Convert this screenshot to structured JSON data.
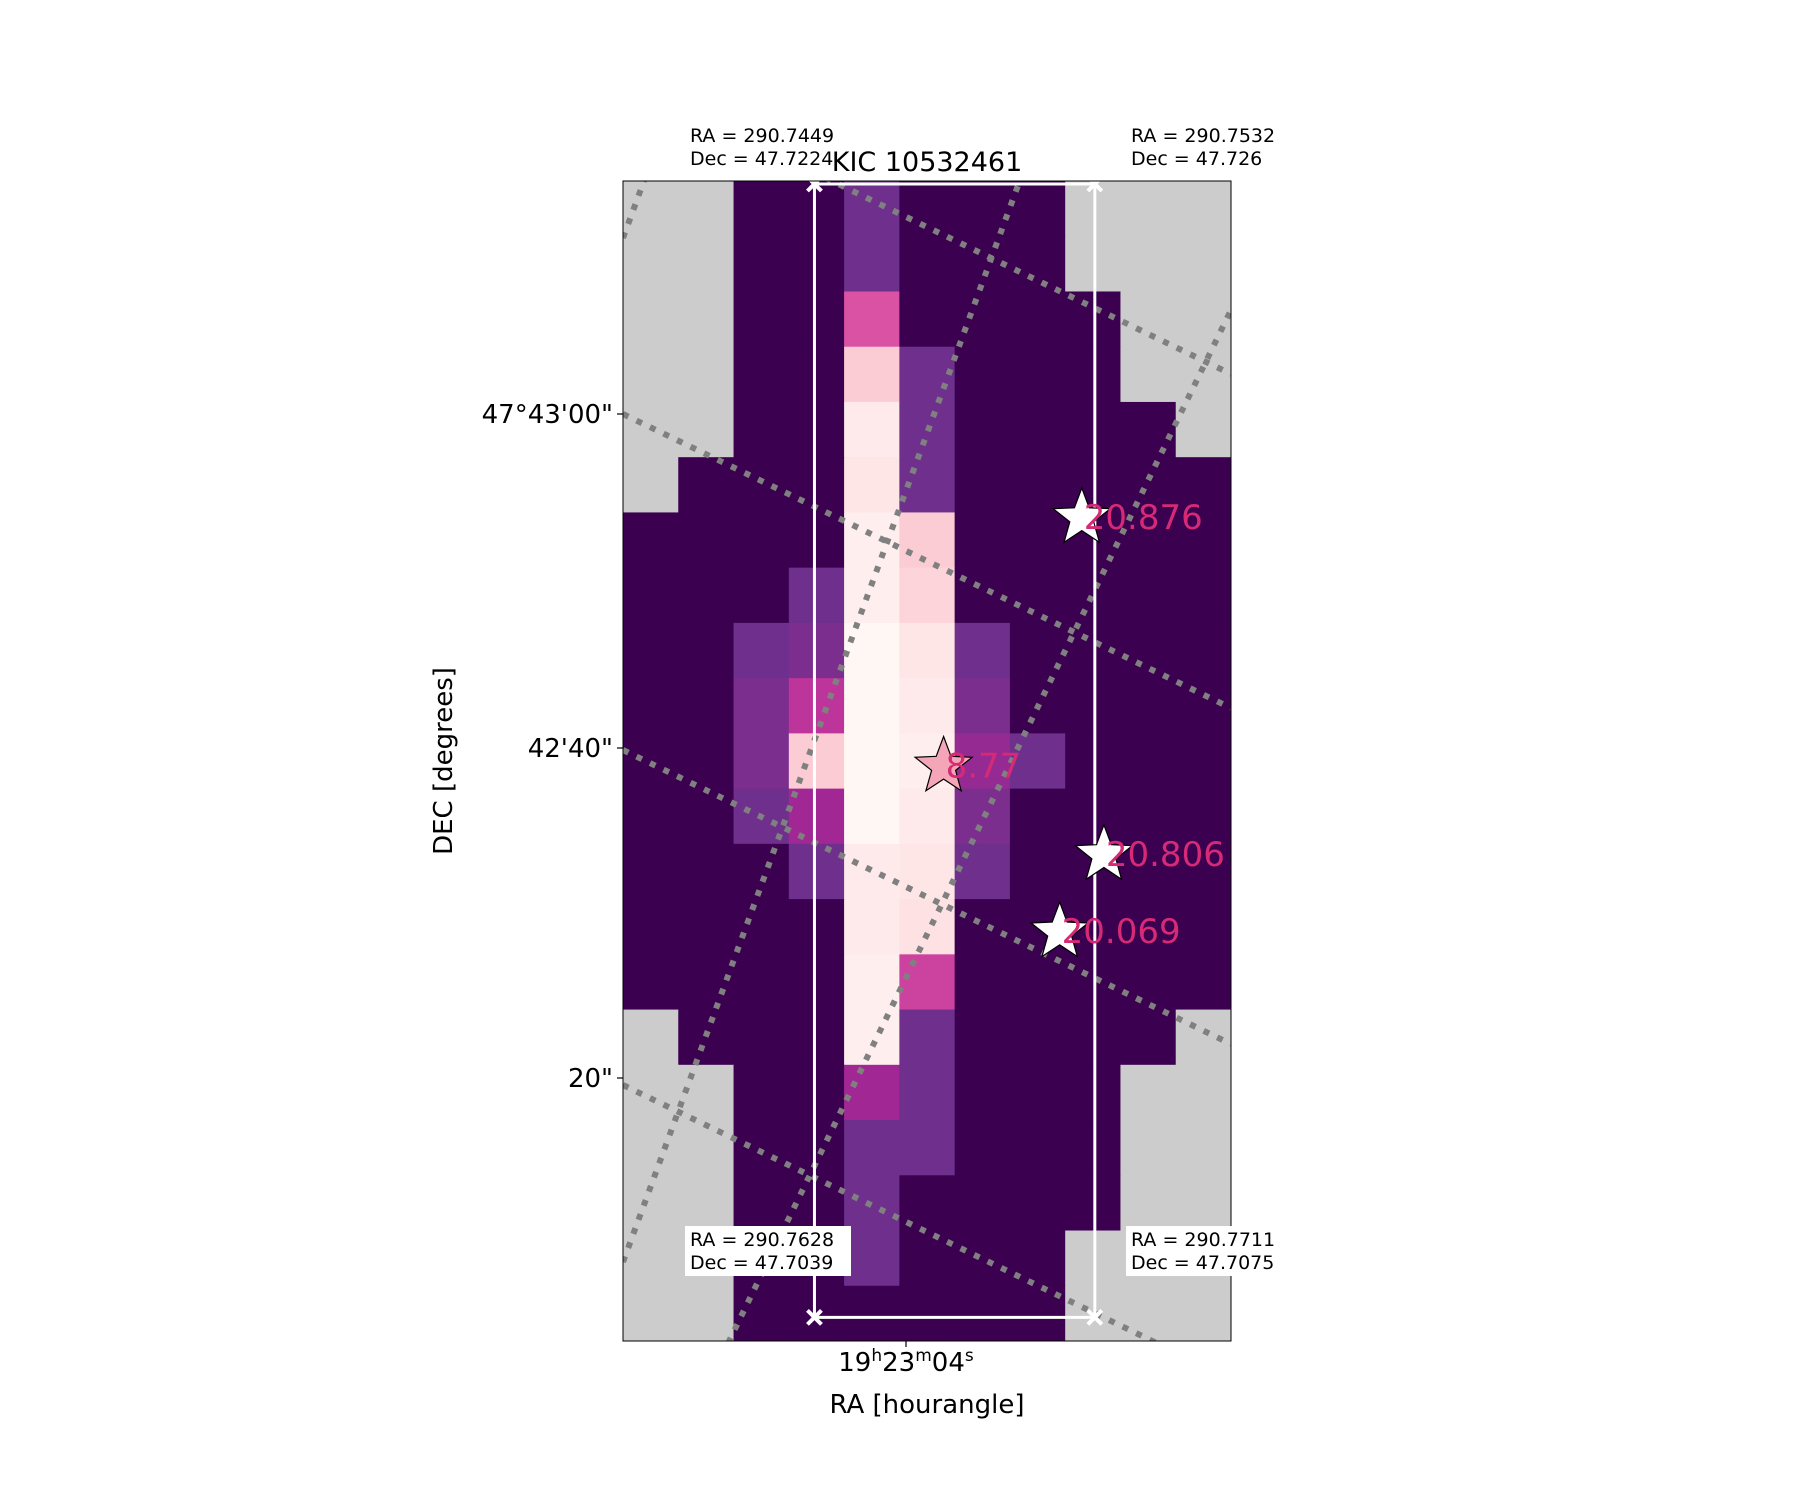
{
  "chart_data": {
    "type": "heatmap",
    "title": "KIC 10532461",
    "xlabel": "RA [hourangle]",
    "ylabel": "DEC [degrees]",
    "x_ticks": [
      {
        "label_parts": [
          "19",
          "h",
          "23",
          "m",
          "04",
          "s"
        ]
      }
    ],
    "y_ticks": [
      {
        "label": "47°43'00\""
      },
      {
        "label": "42'40\""
      },
      {
        "label": "20\""
      }
    ],
    "grid": "dotted gray coordinate grid",
    "colormap": "RdPu_r",
    "masked_color": "#cccccc",
    "pixel_grid": {
      "ncols": 11,
      "nrows": 21,
      "rows_top_to_bottom": [
        [
          -1,
          -1,
          0,
          0,
          0.25,
          0,
          0,
          0,
          -1,
          -1,
          -1
        ],
        [
          -1,
          -1,
          0,
          0,
          0.25,
          0,
          0,
          0,
          -1,
          -1,
          -1
        ],
        [
          -1,
          -1,
          0,
          0,
          0.65,
          0,
          0,
          0,
          0,
          -1,
          -1
        ],
        [
          -1,
          -1,
          0,
          0,
          0.9,
          0.25,
          0,
          0,
          0,
          -1,
          -1
        ],
        [
          -1,
          -1,
          0,
          0,
          0.97,
          0.25,
          0,
          0,
          0,
          0,
          -1
        ],
        [
          -1,
          0,
          0,
          0,
          0.96,
          0.25,
          0,
          0,
          0,
          0,
          0
        ],
        [
          0,
          0,
          0,
          0,
          0.98,
          0.9,
          0,
          0,
          0,
          0,
          0
        ],
        [
          0,
          0,
          0,
          0.25,
          0.98,
          0.92,
          0,
          0,
          0,
          0,
          0
        ],
        [
          0,
          0,
          0.25,
          0.3,
          1,
          0.96,
          0.25,
          0,
          0,
          0,
          0
        ],
        [
          0,
          0,
          0.3,
          0.55,
          1,
          0.97,
          0.3,
          0,
          0,
          0,
          0
        ],
        [
          0,
          0,
          0.3,
          0.9,
          1,
          0.98,
          0.4,
          0.25,
          0,
          0,
          0
        ],
        [
          0,
          0,
          0.25,
          0.45,
          1,
          0.97,
          0.3,
          0,
          0,
          0,
          0
        ],
        [
          0,
          0,
          0,
          0.25,
          0.97,
          0.96,
          0.25,
          0,
          0,
          0,
          0
        ],
        [
          0,
          0,
          0,
          0,
          0.97,
          0.95,
          0,
          0,
          0,
          0,
          0
        ],
        [
          0,
          0,
          0,
          0,
          0.98,
          0.6,
          0,
          0,
          0,
          0,
          0
        ],
        [
          -1,
          0,
          0,
          0,
          0.98,
          0.25,
          0,
          0,
          0,
          0,
          -1
        ],
        [
          -1,
          -1,
          0,
          0,
          0.45,
          0.25,
          0,
          0,
          0,
          -1,
          -1
        ],
        [
          -1,
          -1,
          0,
          0,
          0.25,
          0.25,
          0,
          0,
          0,
          -1,
          -1
        ],
        [
          -1,
          -1,
          0,
          0,
          0.25,
          0,
          0,
          0,
          0,
          -1,
          -1
        ],
        [
          -1,
          -1,
          0,
          0,
          0.25,
          0,
          0,
          0,
          -1,
          -1,
          -1
        ],
        [
          -1,
          -1,
          0,
          0,
          0,
          0,
          0,
          0,
          -1,
          -1,
          -1
        ]
      ]
    },
    "aperture": {
      "col_range": [
        3,
        9
      ],
      "row_range": [
        0,
        20
      ]
    },
    "corner_labels": [
      {
        "line1": "RA = 290.7449",
        "line2": "Dec = 47.7224"
      },
      {
        "line1": "RA = 290.7532",
        "line2": "Dec = 47.726"
      },
      {
        "line1": "RA = 290.7628",
        "line2": "Dec = 47.7039"
      },
      {
        "line1": "RA = 290.7711",
        "line2": "Dec = 47.7075"
      }
    ],
    "stars": [
      {
        "label": "8.77",
        "col": 5.8,
        "row": 10.6,
        "color": "#f4a6b8"
      },
      {
        "label": "20.876",
        "col": 8.3,
        "row": 6.1,
        "color": "#ffffff"
      },
      {
        "label": "20.806",
        "col": 8.7,
        "row": 12.2,
        "color": "#ffffff"
      },
      {
        "label": "20.069",
        "col": 7.9,
        "row": 13.6,
        "color": "#ffffff"
      }
    ],
    "star_label_color": "#d62a76"
  }
}
